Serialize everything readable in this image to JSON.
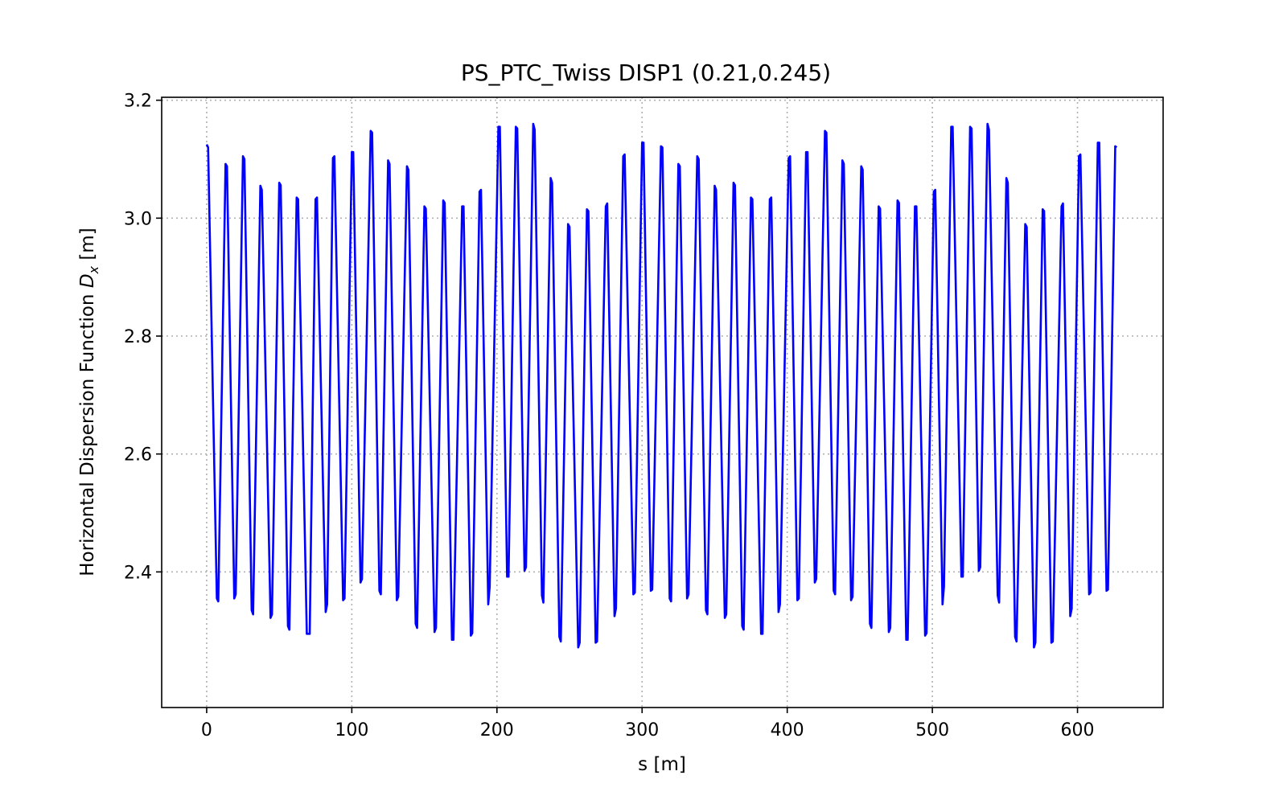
{
  "chart_data": {
    "type": "line",
    "title": "PS_PTC_Twiss DISP1 (0.21,0.245)",
    "xlabel": "s [m]",
    "ylabel_prefix": "Horizontal Dispersion Function ",
    "ylabel_symbol": "D",
    "ylabel_subscript": "x",
    "ylabel_suffix": " [m]",
    "xlim": [
      -31,
      659
    ],
    "ylim": [
      2.17,
      3.205
    ],
    "xticks": [
      0,
      100,
      200,
      300,
      400,
      500,
      600
    ],
    "xtick_labels": [
      "0",
      "100",
      "200",
      "300",
      "400",
      "500",
      "600"
    ],
    "yticks": [
      2.4,
      2.6,
      2.8,
      3.0,
      3.2
    ],
    "ytick_labels": [
      "2.4",
      "2.6",
      "2.8",
      "3.0",
      "3.2"
    ],
    "grid": true,
    "legend": "none",
    "series": [
      {
        "color": "#0000ff",
        "x": [
          0,
          1,
          7,
          8,
          13,
          14,
          19,
          20,
          25,
          26,
          31,
          32,
          37,
          38,
          44,
          45,
          50,
          51,
          56,
          57,
          62,
          63,
          69,
          71,
          75,
          76,
          82,
          83,
          87,
          88,
          94,
          95,
          100,
          101,
          106,
          107,
          113,
          114,
          119,
          120,
          125,
          126,
          131,
          132,
          138,
          139,
          144,
          145,
          150,
          151,
          157,
          158,
          163,
          164,
          169,
          170,
          176,
          177,
          182,
          183,
          188,
          189,
          194,
          195,
          201,
          202,
          207,
          208,
          213,
          214,
          219,
          220,
          225,
          226,
          231,
          232,
          237,
          238,
          243,
          244,
          249,
          250,
          256,
          257,
          262,
          263,
          268,
          269,
          275,
          276,
          281,
          282,
          287,
          288,
          294,
          295,
          300,
          301,
          306,
          307,
          313,
          314,
          319,
          320,
          325,
          326,
          331,
          332,
          338,
          339,
          344,
          345,
          350,
          351,
          357,
          358,
          363,
          364,
          369,
          370,
          375,
          376,
          382,
          383,
          388,
          389,
          394,
          395,
          401,
          402,
          407,
          408,
          413,
          414,
          419,
          420,
          426,
          427,
          432,
          433,
          438,
          439,
          444,
          445,
          451,
          452,
          457,
          458,
          463,
          464,
          470,
          471,
          476,
          477,
          482,
          483,
          488,
          489,
          495,
          496,
          501,
          502,
          507,
          508,
          513,
          514,
          520,
          521,
          526,
          527,
          532,
          533,
          538,
          539,
          545,
          546,
          551,
          552,
          557,
          558,
          564,
          565,
          570,
          571,
          576,
          577,
          582,
          583,
          589,
          590,
          595,
          596,
          601,
          602,
          608,
          609,
          614,
          615,
          620,
          621,
          626,
          627
        ],
        "values": [
          3.125,
          3.12,
          2.355,
          2.35,
          3.092,
          3.088,
          2.355,
          2.362,
          3.105,
          3.1,
          2.335,
          2.328,
          3.055,
          3.048,
          2.322,
          2.328,
          3.06,
          3.056,
          2.308,
          2.302,
          3.035,
          3.032,
          2.295,
          2.295,
          3.032,
          3.035,
          2.332,
          2.345,
          3.102,
          3.105,
          2.352,
          2.355,
          3.112,
          3.112,
          2.382,
          2.388,
          3.148,
          3.145,
          2.368,
          2.362,
          3.098,
          3.092,
          2.352,
          2.358,
          3.088,
          3.082,
          2.312,
          2.305,
          3.02,
          3.016,
          2.298,
          2.305,
          3.03,
          3.026,
          2.285,
          2.285,
          3.02,
          3.02,
          2.292,
          2.296,
          3.045,
          3.048,
          2.345,
          2.375,
          3.155,
          3.155,
          2.392,
          2.392,
          3.155,
          3.152,
          2.402,
          2.408,
          3.16,
          3.15,
          2.36,
          2.348,
          3.068,
          3.06,
          2.29,
          2.282,
          2.99,
          2.985,
          2.272,
          2.28,
          3.015,
          3.012,
          2.28,
          2.282,
          3.02,
          3.025,
          2.325,
          2.338,
          3.105,
          3.108,
          2.362,
          2.365,
          3.128,
          3.128,
          2.368,
          2.37,
          3.122,
          3.12,
          2.355,
          2.35,
          3.092,
          3.088,
          2.355,
          2.362,
          3.105,
          3.1,
          2.335,
          2.328,
          3.055,
          3.048,
          2.322,
          2.328,
          3.06,
          3.056,
          2.308,
          2.302,
          3.035,
          3.032,
          2.295,
          2.295,
          3.032,
          3.035,
          2.332,
          2.345,
          3.102,
          3.105,
          2.352,
          2.355,
          3.112,
          3.112,
          2.382,
          2.388,
          3.148,
          3.145,
          2.368,
          2.362,
          3.098,
          3.092,
          2.352,
          2.358,
          3.088,
          3.082,
          2.312,
          2.305,
          3.02,
          3.016,
          2.298,
          2.305,
          3.03,
          3.026,
          2.285,
          2.285,
          3.02,
          3.02,
          2.292,
          2.296,
          3.045,
          3.048,
          2.345,
          2.375,
          3.155,
          3.155,
          2.392,
          2.392,
          3.155,
          3.152,
          2.402,
          2.408,
          3.16,
          3.15,
          2.36,
          2.348,
          3.068,
          3.06,
          2.29,
          2.282,
          2.99,
          2.985,
          2.272,
          2.28,
          3.015,
          3.012,
          2.28,
          2.282,
          3.02,
          3.025,
          2.325,
          2.338,
          3.105,
          3.108,
          2.362,
          2.365,
          3.128,
          3.128,
          2.368,
          2.37,
          3.122,
          3.12
        ]
      }
    ]
  }
}
